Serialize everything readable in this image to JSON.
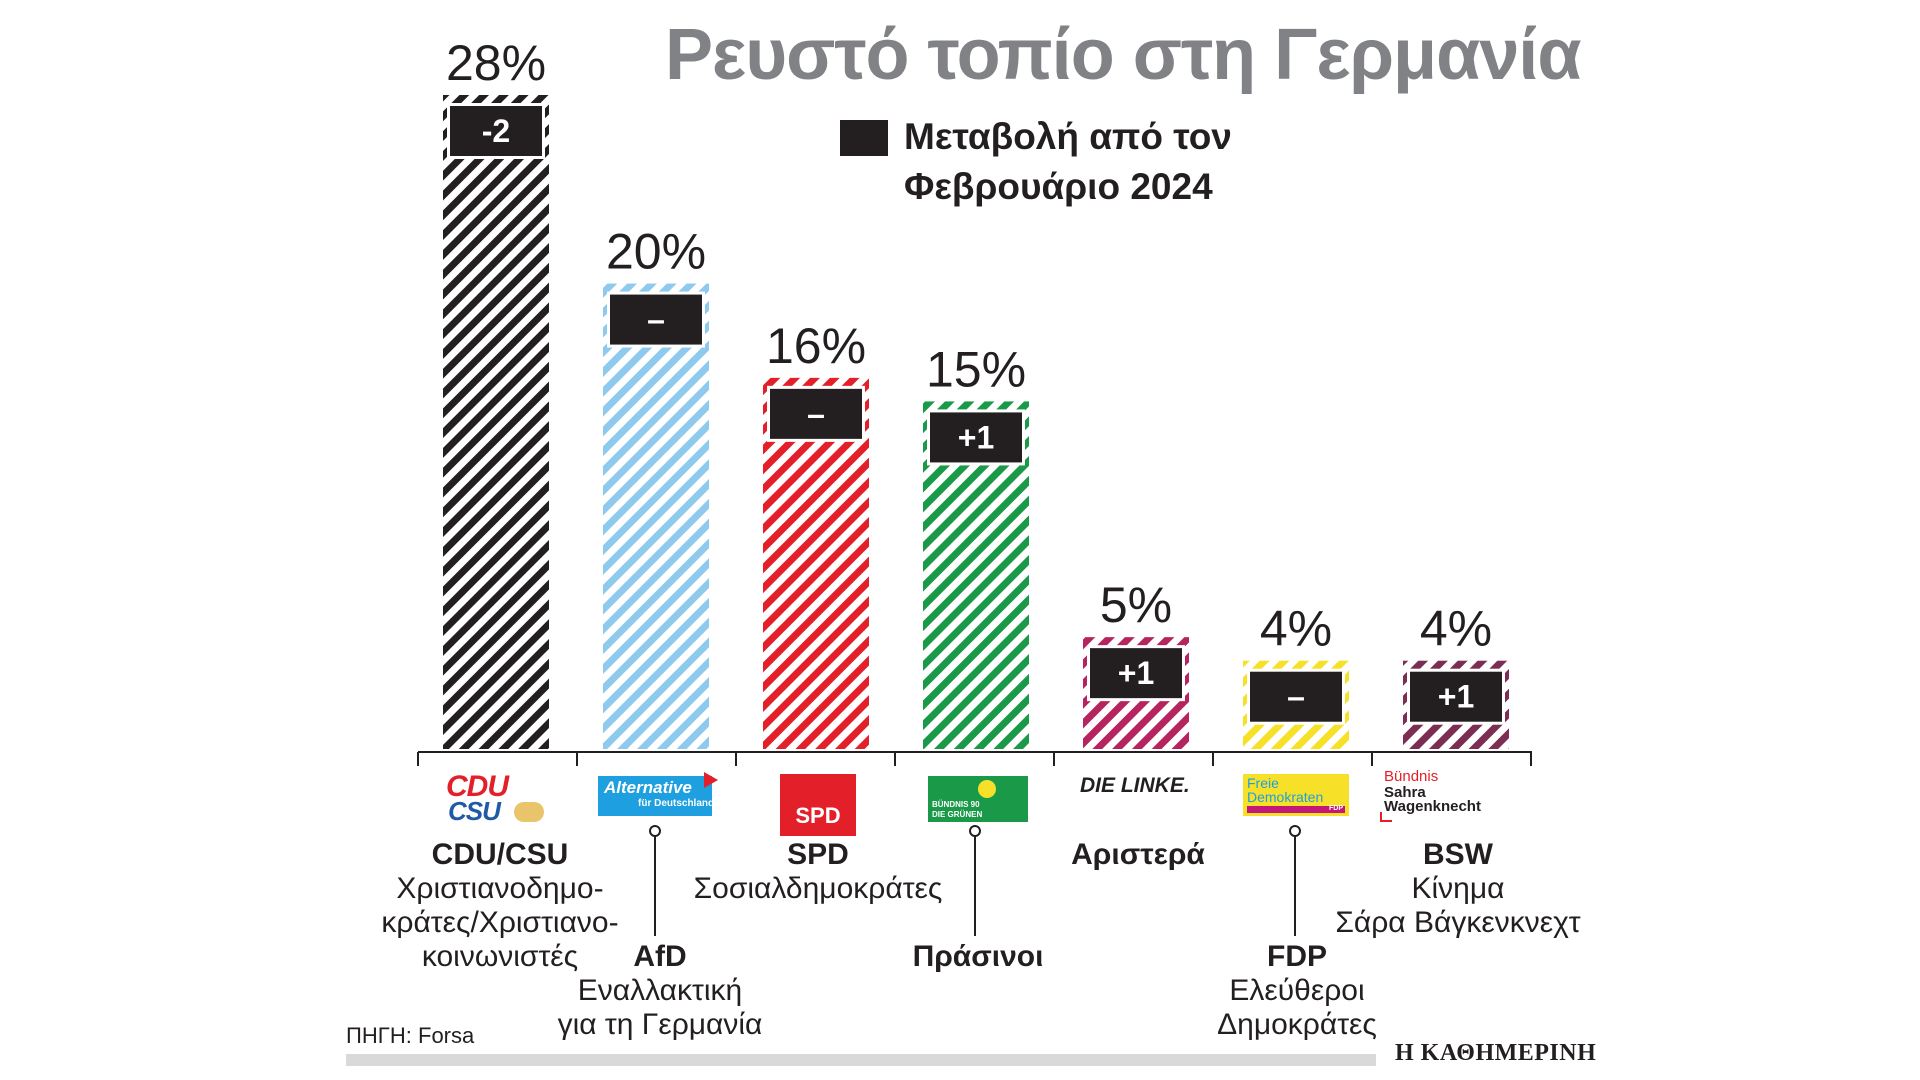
{
  "title": "Ρευστό τοπίο στη Γερμανία",
  "legend": {
    "label": "Μεταβολή από τον Φεβρουάριο 2024",
    "color": "#231f20"
  },
  "source": "ΠΗΓΗ: Forsa",
  "brand": "Η ΚΑΘΗΜΕΡΙΝΗ",
  "chart_data": {
    "type": "bar",
    "title": "Ρευστό τοπίο στη Γερμανία",
    "xlabel": "",
    "ylabel": "",
    "ylim": [
      0,
      28
    ],
    "unit": "%",
    "categories": [
      "CDU/CSU",
      "AfD",
      "SPD",
      "Πράσινοι",
      "Αριστερά",
      "FDP",
      "BSW"
    ],
    "values": [
      28,
      20,
      16,
      15,
      5,
      4,
      4
    ],
    "value_labels": [
      "28%",
      "20%",
      "16%",
      "15%",
      "5%",
      "4%",
      "4%"
    ],
    "change_labels": [
      "-2",
      "–",
      "–",
      "+1",
      "+1",
      "–",
      "+1"
    ],
    "colors": [
      "#231f20",
      "#8ec9ee",
      "#e3202a",
      "#1a9a48",
      "#b5245f",
      "#f6e128",
      "#7b2d52"
    ]
  },
  "parties": [
    {
      "abbr": "CDU/CSU",
      "full": "Χριστιανοδημο-\nκράτες/Χριστιανο-\nκοινωνιστές"
    },
    {
      "abbr": "AfD",
      "full": "Εναλλακτική\nγια τη Γερμανία"
    },
    {
      "abbr": "SPD",
      "full": "Σοσιαλδημοκράτες"
    },
    {
      "abbr": "Πράσινοι",
      "full": ""
    },
    {
      "abbr": "Αριστερά",
      "full": ""
    },
    {
      "abbr": "FDP",
      "full": "Ελεύθεροι\nΔημοκράτες"
    },
    {
      "abbr": "BSW",
      "full": "Κίνημα\nΣάρα Βάγκενκνεχτ"
    }
  ],
  "logos": {
    "cdu_top": "CDU",
    "cdu_bottom": "CSU",
    "afd_main": "Alternative",
    "afd_sub": "für Deutschland",
    "spd": "SPD",
    "gruene_line1": "BÜNDNIS 90",
    "gruene_line2": "DIE GRÜNEN",
    "linke": "DIE LINKE.",
    "fdp_line1": "Freie",
    "fdp_line2": "Demokraten",
    "fdp_tag": "FDP",
    "bsw_line1": "Bündnis",
    "bsw_line2": "Sahra",
    "bsw_line3": "Wagenknecht"
  }
}
